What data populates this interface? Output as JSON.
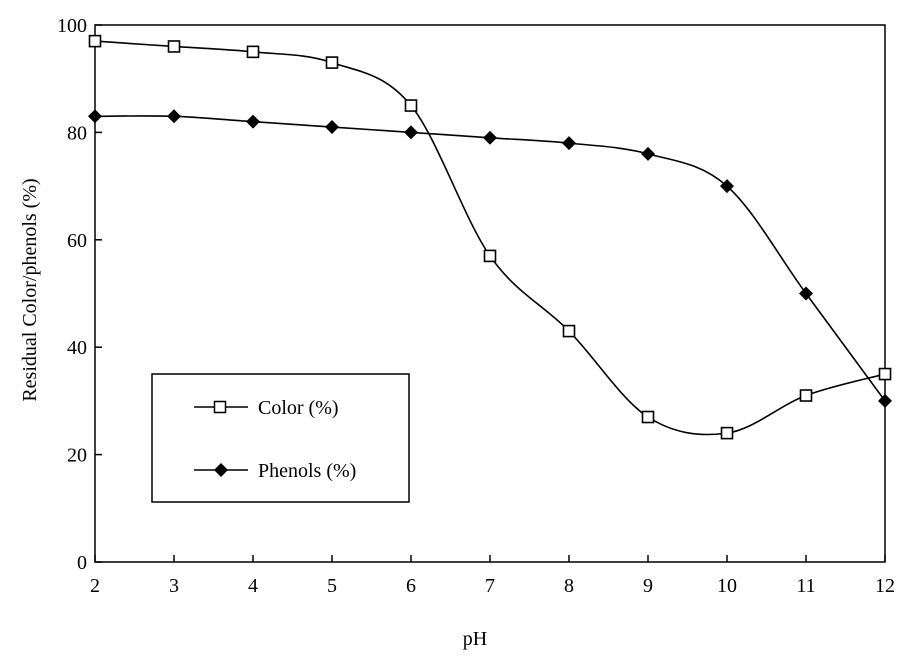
{
  "chart_data": {
    "type": "line",
    "title": "",
    "xlabel": "pH",
    "ylabel": "Residual Color/phenols (%)",
    "xlim": [
      2,
      12
    ],
    "ylim": [
      0,
      100
    ],
    "xticks": [
      "2",
      "3",
      "4",
      "5",
      "6",
      "7",
      "8",
      "9",
      "10",
      "11",
      "12"
    ],
    "yticks": [
      "0",
      "20",
      "40",
      "60",
      "80",
      "100"
    ],
    "grid": false,
    "legend": "inside-lower-left",
    "x": [
      2,
      3,
      4,
      5,
      6,
      7,
      8,
      9,
      10,
      11,
      12
    ],
    "series": [
      {
        "name": "Color (%)",
        "marker": "open-square",
        "color": "#000000",
        "values": [
          97,
          96,
          95,
          93,
          85,
          57,
          43,
          27,
          24,
          31,
          35
        ]
      },
      {
        "name": "Phenols (%)",
        "marker": "filled-diamond",
        "color": "#000000",
        "values": [
          83,
          83,
          82,
          81,
          80,
          79,
          78,
          76,
          70,
          50,
          30
        ]
      }
    ]
  }
}
